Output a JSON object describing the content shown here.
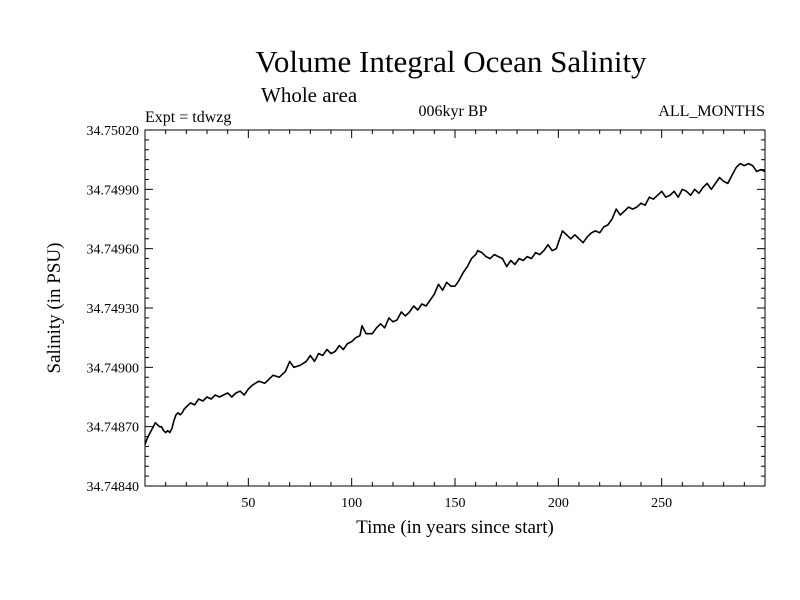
{
  "chart_data": {
    "type": "line",
    "title": "Volume Integral Ocean Salinity",
    "subtitle": "Whole area",
    "experiment": "Expt = tdwzg",
    "period": "006kyr BP",
    "months": "ALL_MONTHS",
    "xlabel": "Time (in years since start)",
    "ylabel": "Salinity (in PSU)",
    "xlim": [
      0,
      300
    ],
    "ylim": [
      34.7484,
      34.7502
    ],
    "xticks": [
      50,
      100,
      150,
      200,
      250
    ],
    "yticks": [
      "34.74840",
      "34.74870",
      "34.74900",
      "34.74930",
      "34.74960",
      "34.74990",
      "34.75020"
    ],
    "grid": false,
    "series": [
      {
        "values": [
          [
            0,
            34.74861
          ],
          [
            1,
            34.74864
          ],
          [
            2,
            34.74866
          ],
          [
            3,
            34.74868
          ],
          [
            4,
            34.7487
          ],
          [
            5,
            34.74872
          ],
          [
            6,
            34.74871
          ],
          [
            7,
            34.7487
          ],
          [
            8,
            34.7487
          ],
          [
            9,
            34.74868
          ],
          [
            10,
            34.74867
          ],
          [
            11,
            34.74868
          ],
          [
            12,
            34.74867
          ],
          [
            13,
            34.74869
          ],
          [
            14,
            34.74873
          ],
          [
            15,
            34.74876
          ],
          [
            16,
            34.74877
          ],
          [
            17,
            34.74876
          ],
          [
            18,
            34.74877
          ],
          [
            19,
            34.74879
          ],
          [
            20,
            34.7488
          ],
          [
            22,
            34.74882
          ],
          [
            24,
            34.74881
          ],
          [
            26,
            34.74884
          ],
          [
            28,
            34.74883
          ],
          [
            30,
            34.74885
          ],
          [
            32,
            34.74884
          ],
          [
            34,
            34.74886
          ],
          [
            36,
            34.74885
          ],
          [
            38,
            34.74886
          ],
          [
            40,
            34.74887
          ],
          [
            42,
            34.74885
          ],
          [
            44,
            34.74887
          ],
          [
            46,
            34.74888
          ],
          [
            48,
            34.74886
          ],
          [
            50,
            34.74889
          ],
          [
            52,
            34.74891
          ],
          [
            55,
            34.74893
          ],
          [
            58,
            34.74892
          ],
          [
            60,
            34.74894
          ],
          [
            62,
            34.74896
          ],
          [
            65,
            34.74895
          ],
          [
            68,
            34.74898
          ],
          [
            70,
            34.74903
          ],
          [
            72,
            34.749
          ],
          [
            75,
            34.74901
          ],
          [
            78,
            34.74903
          ],
          [
            80,
            34.74906
          ],
          [
            82,
            34.74903
          ],
          [
            84,
            34.74907
          ],
          [
            86,
            34.74906
          ],
          [
            88,
            34.74909
          ],
          [
            90,
            34.74907
          ],
          [
            92,
            34.74908
          ],
          [
            94,
            34.74911
          ],
          [
            96,
            34.74909
          ],
          [
            98,
            34.74912
          ],
          [
            100,
            34.74913
          ],
          [
            102,
            34.74915
          ],
          [
            104,
            34.74916
          ],
          [
            105,
            34.74921
          ],
          [
            107,
            34.74917
          ],
          [
            110,
            34.74917
          ],
          [
            112,
            34.7492
          ],
          [
            114,
            34.74922
          ],
          [
            116,
            34.7492
          ],
          [
            118,
            34.74925
          ],
          [
            120,
            34.74923
          ],
          [
            122,
            34.74924
          ],
          [
            124,
            34.74928
          ],
          [
            126,
            34.74926
          ],
          [
            128,
            34.74928
          ],
          [
            130,
            34.74931
          ],
          [
            132,
            34.74929
          ],
          [
            134,
            34.74932
          ],
          [
            136,
            34.74931
          ],
          [
            138,
            34.74934
          ],
          [
            140,
            34.74937
          ],
          [
            142,
            34.74942
          ],
          [
            144,
            34.74939
          ],
          [
            146,
            34.74943
          ],
          [
            148,
            34.74941
          ],
          [
            150,
            34.74941
          ],
          [
            152,
            34.74944
          ],
          [
            154,
            34.74948
          ],
          [
            156,
            34.74951
          ],
          [
            158,
            34.74955
          ],
          [
            160,
            34.74957
          ],
          [
            161,
            34.74959
          ],
          [
            163,
            34.74958
          ],
          [
            165,
            34.74956
          ],
          [
            167,
            34.74955
          ],
          [
            169,
            34.74957
          ],
          [
            171,
            34.74956
          ],
          [
            173,
            34.74955
          ],
          [
            175,
            34.74951
          ],
          [
            177,
            34.74954
          ],
          [
            179,
            34.74952
          ],
          [
            181,
            34.74955
          ],
          [
            183,
            34.74954
          ],
          [
            185,
            34.74956
          ],
          [
            187,
            34.74955
          ],
          [
            189,
            34.74958
          ],
          [
            191,
            34.74957
          ],
          [
            193,
            34.74959
          ],
          [
            195,
            34.74962
          ],
          [
            197,
            34.74959
          ],
          [
            199,
            34.7496
          ],
          [
            200,
            34.74963
          ],
          [
            202,
            34.74969
          ],
          [
            204,
            34.74967
          ],
          [
            206,
            34.74965
          ],
          [
            208,
            34.74967
          ],
          [
            210,
            34.74965
          ],
          [
            212,
            34.74963
          ],
          [
            214,
            34.74966
          ],
          [
            216,
            34.74968
          ],
          [
            218,
            34.74969
          ],
          [
            220,
            34.74968
          ],
          [
            222,
            34.74971
          ],
          [
            224,
            34.74972
          ],
          [
            226,
            34.74975
          ],
          [
            228,
            34.7498
          ],
          [
            230,
            34.74977
          ],
          [
            232,
            34.74979
          ],
          [
            234,
            34.74981
          ],
          [
            236,
            34.7498
          ],
          [
            238,
            34.74981
          ],
          [
            240,
            34.74983
          ],
          [
            242,
            34.74982
          ],
          [
            244,
            34.74986
          ],
          [
            246,
            34.74985
          ],
          [
            248,
            34.74987
          ],
          [
            250,
            34.74989
          ],
          [
            252,
            34.74986
          ],
          [
            254,
            34.74987
          ],
          [
            256,
            34.74989
          ],
          [
            258,
            34.74986
          ],
          [
            260,
            34.7499
          ],
          [
            262,
            34.74989
          ],
          [
            264,
            34.74987
          ],
          [
            266,
            34.7499
          ],
          [
            268,
            34.74988
          ],
          [
            270,
            34.74991
          ],
          [
            272,
            34.74993
          ],
          [
            274,
            34.7499
          ],
          [
            276,
            34.74993
          ],
          [
            278,
            34.74996
          ],
          [
            280,
            34.74994
          ],
          [
            282,
            34.74993
          ],
          [
            284,
            34.74997
          ],
          [
            286,
            34.75001
          ],
          [
            288,
            34.75003
          ],
          [
            290,
            34.75002
          ],
          [
            292,
            34.75003
          ],
          [
            294,
            34.75002
          ],
          [
            296,
            34.74999
          ],
          [
            298,
            34.75
          ],
          [
            300,
            34.74999
          ]
        ]
      }
    ]
  }
}
